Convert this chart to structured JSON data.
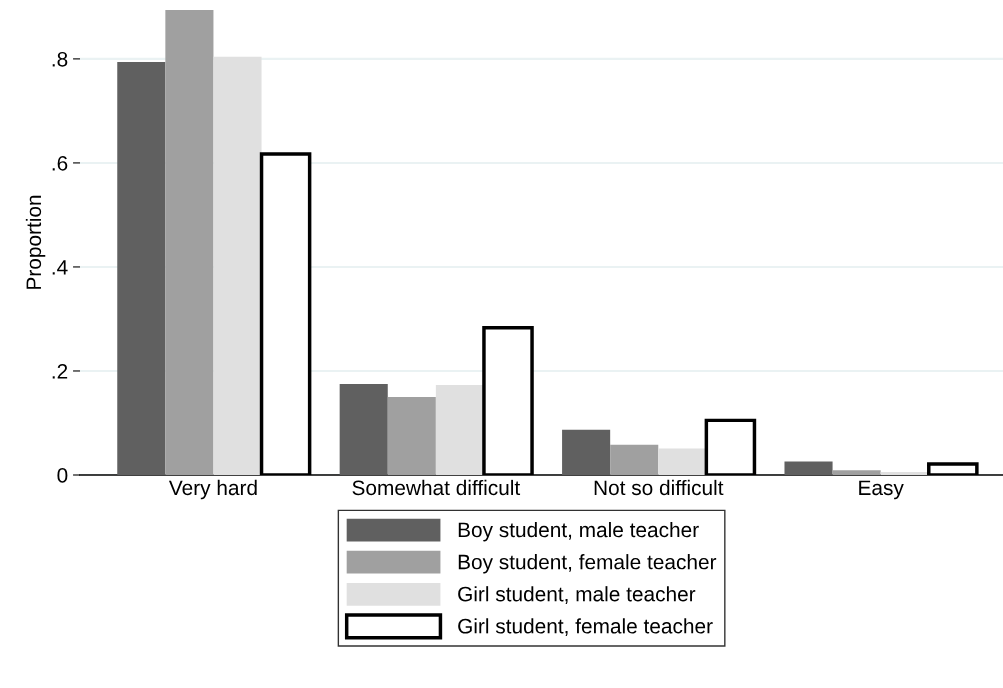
{
  "chart_data": {
    "type": "bar",
    "ylabel": "Proportion",
    "categories": [
      "Very hard",
      "Somewhat difficult",
      "Not so difficult",
      "Easy"
    ],
    "series": [
      {
        "name": "Boy student, male teacher",
        "color": "#606060",
        "values": [
          0.794,
          0.175,
          0.087,
          0.026
        ]
      },
      {
        "name": "Boy student, female teacher",
        "color": "#a0a0a0",
        "values": [
          0.894,
          0.15,
          0.058,
          0.009
        ]
      },
      {
        "name": "Girl student, male teacher",
        "color": "#e0e0e0",
        "values": [
          0.804,
          0.173,
          0.051,
          0.006
        ]
      },
      {
        "name": "Girl student, female teacher",
        "color": "#ffffff",
        "values": [
          0.617,
          0.283,
          0.105,
          0.021
        ]
      }
    ],
    "ylim": [
      0,
      0.894
    ],
    "yticks": [
      {
        "value": 0,
        "label": "0"
      },
      {
        "value": 0.2,
        "label": ".2"
      },
      {
        "value": 0.4,
        "label": ".4"
      },
      {
        "value": 0.6,
        "label": ".6"
      },
      {
        "value": 0.8,
        "label": ".8"
      }
    ],
    "grid": "y",
    "legend": "bottom"
  }
}
